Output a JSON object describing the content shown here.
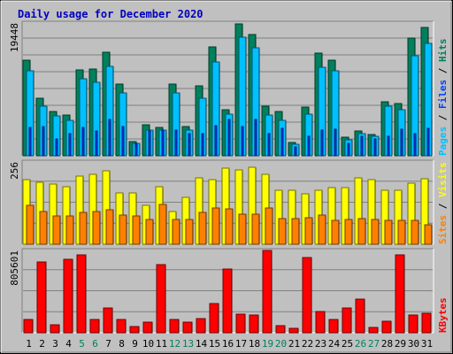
{
  "chart_data": {
    "title": "Daily usage for December 2020",
    "colors": {
      "background": "#c0c0c0",
      "title": "#0000c0",
      "hits": "#00805c",
      "files": "#0040ff",
      "pages": "#00c0ff",
      "sites": "#ff8000",
      "visits": "#ffff00",
      "kbytes": "#ff0000",
      "weekend_day": "#00805c",
      "weekday": "#000000"
    },
    "days": [
      "1",
      "2",
      "3",
      "4",
      "5",
      "6",
      "7",
      "8",
      "9",
      "10",
      "11",
      "12",
      "13",
      "14",
      "15",
      "16",
      "17",
      "18",
      "19",
      "20",
      "21",
      "22",
      "23",
      "24",
      "25",
      "26",
      "27",
      "28",
      "29",
      "30",
      "31"
    ],
    "weekend_days": [
      "5",
      "6",
      "12",
      "13",
      "19",
      "20",
      "26",
      "27"
    ],
    "panels": [
      {
        "type": "bar",
        "scale_label": "19448",
        "ylim": [
          0,
          19448
        ],
        "legend": [
          {
            "label": "Hits",
            "color": "#00805c"
          },
          {
            "label": "Files",
            "color": "#0040ff"
          },
          {
            "label": "Pages",
            "color": "#00c0ff"
          }
        ],
        "series": [
          {
            "name": "Hits",
            "values": [
              14000,
              8400,
              6500,
              5900,
              12600,
              12700,
              15200,
              10500,
              2100,
              4600,
              4100,
              10500,
              4300,
              10300,
              16000,
              6800,
              19300,
              17700,
              7200,
              6500,
              1900,
              7100,
              15000,
              14000,
              2700,
              3600,
              3100,
              7900,
              7700,
              17300,
              18800
            ]
          },
          {
            "name": "Files",
            "values": [
              4200,
              4300,
              2400,
              3200,
              4100,
              3600,
              5300,
              4300,
              1800,
              3600,
              3700,
              3800,
              3200,
              3200,
              4400,
              5300,
              4300,
              5300,
              3300,
              4000,
              1300,
              2800,
              3700,
              3900,
              1800,
              2900,
              2400,
              2900,
              3900,
              3200,
              4000
            ]
          },
          {
            "name": "Pages",
            "values": [
              12500,
              7300,
              5800,
              5200,
              11300,
              10700,
              13100,
              9200,
              1800,
              3800,
              3700,
              9200,
              3700,
              8400,
              13800,
              6100,
              17400,
              15800,
              6000,
              5200,
              1700,
              6100,
              13000,
              12400,
              2300,
              3300,
              2800,
              7200,
              6800,
              14600,
              16500
            ]
          }
        ]
      },
      {
        "type": "bar",
        "scale_label": "256",
        "ylim": [
          0,
          256
        ],
        "legend": [
          {
            "label": "Visits",
            "color": "#ffff00"
          },
          {
            "label": "Sites",
            "color": "#ff8000"
          }
        ],
        "series": [
          {
            "name": "Visits",
            "values": [
              200,
              192,
              186,
              178,
              212,
              217,
              228,
              161,
              161,
              120,
              178,
              103,
              146,
              206,
              200,
              238,
              230,
              240,
              218,
              167,
              167,
              156,
              167,
              175,
              175,
              206,
              200,
              167,
              167,
              189,
              205
            ]
          },
          {
            "name": "Sites",
            "values": [
              120,
              103,
              88,
              88,
              100,
              103,
              108,
              90,
              88,
              76,
              123,
              76,
              76,
              98,
              113,
              111,
              93,
              93,
              113,
              81,
              81,
              83,
              90,
              73,
              78,
              81,
              76,
              73,
              73,
              73,
              60
            ]
          }
        ]
      },
      {
        "type": "bar",
        "scale_label": "805601",
        "ylim": [
          0,
          805601
        ],
        "legend": [
          {
            "label": "KBytes",
            "color": "#ff0000"
          }
        ],
        "series": [
          {
            "name": "KBytes",
            "values": [
              130000,
              690000,
              80000,
              720000,
              760000,
              130000,
              240000,
              130000,
              60000,
              100000,
              670000,
              130000,
              100000,
              140000,
              290000,
              620000,
              180000,
              170000,
              805000,
              70000,
              40000,
              740000,
              210000,
              130000,
              240000,
              330000,
              50000,
              110000,
              760000,
              170000,
              190000
            ]
          }
        ]
      }
    ]
  }
}
